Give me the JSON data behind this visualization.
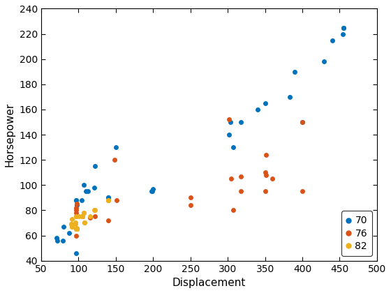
{
  "series": {
    "70": {
      "displacement": [
        307,
        350,
        318,
        304,
        302,
        429,
        454,
        440,
        455,
        390,
        383,
        340,
        400,
        455,
        198,
        199,
        200,
        140,
        97,
        110,
        107,
        104,
        121,
        113,
        97,
        140,
        98,
        97,
        150,
        122,
        80,
        79,
        88,
        71,
        72
      ],
      "horsepower": [
        130,
        165,
        150,
        150,
        140,
        198,
        220,
        215,
        225,
        190,
        170,
        160,
        150,
        225,
        95,
        95,
        97,
        90,
        88,
        95,
        100,
        88,
        98,
        95,
        46,
        90,
        84,
        88,
        130,
        115,
        67,
        56,
        62,
        58,
        56
      ],
      "color": "#0072BD"
    },
    "76": {
      "displacement": [
        151,
        350,
        116,
        140,
        350,
        318,
        351,
        360,
        400,
        400,
        148,
        351,
        302,
        318,
        307,
        250,
        105,
        122,
        97,
        98,
        97,
        250,
        97,
        97,
        105,
        140,
        97,
        98,
        97,
        305
      ],
      "horsepower": [
        88,
        95,
        74,
        72,
        110,
        95,
        108,
        105,
        95,
        150,
        120,
        124,
        152,
        107,
        80,
        90,
        75,
        75,
        60,
        65,
        65,
        84,
        75,
        82,
        75,
        88,
        80,
        85,
        78,
        105
      ],
      "color": "#D95319"
    },
    "82": {
      "displacement": [
        91,
        105,
        98,
        107,
        108,
        96,
        97,
        98,
        122,
        140,
        90,
        98,
        101,
        121,
        98,
        105,
        108,
        91,
        116,
        96,
        90,
        97,
        107,
        98,
        91,
        140,
        105
      ],
      "horsepower": [
        67,
        75,
        65,
        78,
        70,
        69,
        65,
        65,
        80,
        88,
        69,
        65,
        75,
        80,
        66,
        75,
        70,
        67,
        75,
        70,
        69,
        75,
        78,
        65,
        73,
        88,
        75
      ],
      "color": "#EDB120"
    }
  },
  "xlabel": "Displacement",
  "ylabel": "Horsepower",
  "xlim": [
    50,
    500
  ],
  "ylim": [
    40,
    240
  ],
  "xticks": [
    50,
    100,
    150,
    200,
    250,
    300,
    350,
    400,
    450,
    500
  ],
  "yticks": [
    40,
    60,
    80,
    100,
    120,
    140,
    160,
    180,
    200,
    220,
    240
  ],
  "marker": "o",
  "markersize": 5,
  "legend_loc": "lower right",
  "bg_color": "#ffffff",
  "legend_order": [
    "70",
    "76",
    "82"
  ]
}
